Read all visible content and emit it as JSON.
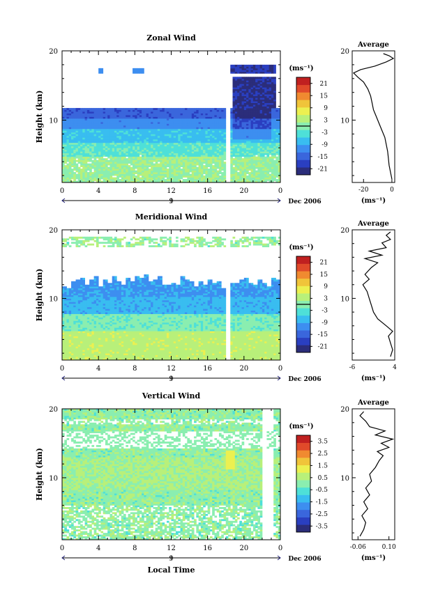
{
  "chart_data": [
    {
      "type": "heatmap",
      "title": "Zonal Wind",
      "ylabel": "Height (km)",
      "x_ticks": [
        "0",
        "4",
        "8",
        "12",
        "16",
        "20",
        "0"
      ],
      "date_tick": "9",
      "date_label": "Dec 2006",
      "xlim": [
        0,
        24
      ],
      "ylim": [
        1,
        20
      ],
      "y_ticks": [
        10,
        20
      ],
      "colorbar": {
        "unit": "(ms⁻¹)",
        "ticks": [
          "21",
          "15",
          "9",
          "3",
          "-3",
          "-9",
          "-15",
          "-21"
        ],
        "range": [
          -24,
          24
        ],
        "zero_line": 0
      },
      "grid": "off",
      "profile": {
        "title": "Average",
        "xlabel": "(ms⁻¹)",
        "x_ticks": [
          "-20",
          "0"
        ],
        "xlim": [
          -28,
          2
        ],
        "ylim": [
          1,
          20
        ],
        "y_ticks": [
          10,
          20
        ],
        "points": [
          [
            0,
            1.5
          ],
          [
            -1,
            2.5
          ],
          [
            -2,
            3.5
          ],
          [
            -2.5,
            4.5
          ],
          [
            -3,
            5.5
          ],
          [
            -4,
            6.5
          ],
          [
            -5,
            7.5
          ],
          [
            -7,
            8.5
          ],
          [
            -9,
            9.5
          ],
          [
            -11,
            10.5
          ],
          [
            -13,
            11.5
          ],
          [
            -14,
            12.5
          ],
          [
            -15,
            13.5
          ],
          [
            -17,
            14.5
          ],
          [
            -20,
            15.5
          ],
          [
            -24,
            16.2
          ],
          [
            -27,
            16.8
          ],
          [
            -22,
            17.3
          ],
          [
            -12,
            17.8
          ],
          [
            -4,
            18.4
          ],
          [
            1,
            18.9
          ],
          [
            -2,
            19.3
          ],
          [
            -6,
            19.6
          ]
        ]
      }
    },
    {
      "type": "heatmap",
      "title": "Meridional Wind",
      "ylabel": "Height (km)",
      "x_ticks": [
        "0",
        "4",
        "8",
        "12",
        "16",
        "20",
        "0"
      ],
      "date_tick": "9",
      "date_label": "Dec 2006",
      "xlim": [
        0,
        24
      ],
      "ylim": [
        1,
        20
      ],
      "y_ticks": [
        10,
        20
      ],
      "colorbar": {
        "unit": "(ms⁻¹)",
        "ticks": [
          "21",
          "15",
          "9",
          "3",
          "-3",
          "-9",
          "-15",
          "-21"
        ],
        "range": [
          -24,
          24
        ],
        "zero_line": 0
      },
      "grid": "off",
      "profile": {
        "title": "Average",
        "xlabel": "(ms⁻¹)",
        "x_ticks": [
          "-6",
          "4"
        ],
        "xlim": [
          -6,
          4
        ],
        "ylim": [
          1,
          20
        ],
        "y_ticks": [
          10,
          20
        ],
        "points": [
          [
            3,
            1.5
          ],
          [
            3.5,
            2.5
          ],
          [
            3,
            3.5
          ],
          [
            2.5,
            4.5
          ],
          [
            3.5,
            5.2
          ],
          [
            2,
            6
          ],
          [
            0,
            7
          ],
          [
            -1,
            8
          ],
          [
            -1.5,
            9
          ],
          [
            -2,
            10
          ],
          [
            -2.5,
            11
          ],
          [
            -3.5,
            12
          ],
          [
            -2,
            12.8
          ],
          [
            -3,
            13.5
          ],
          [
            -1.5,
            14.5
          ],
          [
            0,
            15.2
          ],
          [
            -3,
            15.8
          ],
          [
            1,
            16.3
          ],
          [
            -2,
            16.9
          ],
          [
            2,
            17.4
          ],
          [
            1,
            18.1
          ],
          [
            3,
            18.6
          ],
          [
            2,
            19.2
          ],
          [
            3,
            19.7
          ]
        ]
      }
    },
    {
      "type": "heatmap",
      "title": "Vertical Wind",
      "xlabel": "Local Time",
      "ylabel": "Height (km)",
      "x_ticks": [
        "0",
        "4",
        "8",
        "12",
        "16",
        "20",
        "0"
      ],
      "date_tick": "9",
      "date_label": "Dec 2006",
      "xlim": [
        0,
        24
      ],
      "ylim": [
        1,
        20
      ],
      "y_ticks": [
        10,
        20
      ],
      "colorbar": {
        "unit": "(ms⁻¹)",
        "ticks": [
          "3.5",
          "2.5",
          "1.5",
          "0.5",
          "-0.5",
          "-1.5",
          "-2.5",
          "-3.5"
        ],
        "range": [
          -4,
          4
        ]
      },
      "grid": "off",
      "profile": {
        "title": "Average",
        "xlabel": "(ms⁻¹)",
        "x_ticks": [
          "-0.06",
          "0.10"
        ],
        "xlim": [
          -0.09,
          0.13
        ],
        "ylim": [
          1,
          20
        ],
        "y_ticks": [
          10,
          20
        ],
        "points": [
          [
            -0.05,
            1.5
          ],
          [
            -0.03,
            2.5
          ],
          [
            -0.02,
            3.5
          ],
          [
            -0.04,
            4.5
          ],
          [
            -0.01,
            5.5
          ],
          [
            -0.03,
            6.5
          ],
          [
            0.0,
            7.5
          ],
          [
            -0.02,
            8.5
          ],
          [
            0.01,
            9.5
          ],
          [
            0.0,
            10.5
          ],
          [
            0.03,
            11.5
          ],
          [
            0.05,
            12.5
          ],
          [
            0.07,
            13.2
          ],
          [
            0.04,
            13.8
          ],
          [
            0.1,
            14.4
          ],
          [
            0.06,
            15
          ],
          [
            0.12,
            15.6
          ],
          [
            0.03,
            16.2
          ],
          [
            0.08,
            16.8
          ],
          [
            0.0,
            17.4
          ],
          [
            -0.02,
            18.2
          ],
          [
            -0.05,
            19
          ],
          [
            -0.03,
            19.6
          ]
        ]
      }
    }
  ],
  "colorscale": [
    "#2b2d7a",
    "#2a3fc0",
    "#3a66dc",
    "#3d8ef0",
    "#39bdf0",
    "#4ee0d8",
    "#8aeeb0",
    "#b8f07a",
    "#ecf050",
    "#f0c43a",
    "#f08a30",
    "#e04a2a",
    "#c02020"
  ]
}
